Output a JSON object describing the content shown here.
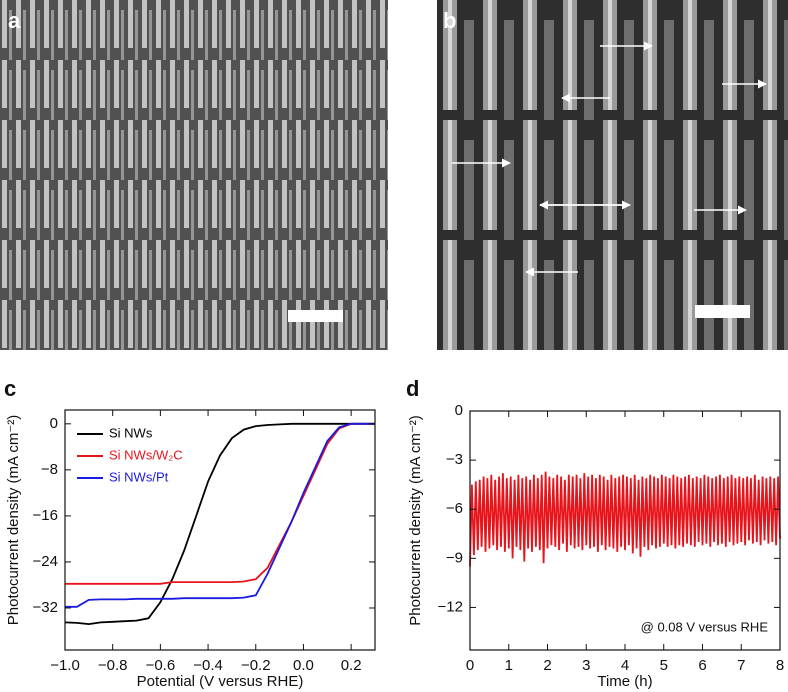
{
  "image_panels": [
    {
      "label": "a"
    },
    {
      "label": "b"
    }
  ],
  "chart_data": [
    {
      "type": "line",
      "label": "c",
      "xlabel": "Potential (V versus RHE)",
      "ylabel": "Photocurrent density (mA cm⁻²)",
      "x": [
        -1,
        -0.95,
        -0.9,
        -0.85,
        -0.8,
        -0.75,
        -0.7,
        -0.65,
        -0.6,
        -0.55,
        -0.5,
        -0.45,
        -0.4,
        -0.35,
        -0.3,
        -0.25,
        -0.2,
        -0.15,
        -0.1,
        -0.05,
        0,
        0.05,
        0.1,
        0.15,
        0.2,
        0.25,
        0.3
      ],
      "series": [
        {
          "name": "Si NWs",
          "color": "#000000",
          "values": [
            -34.5,
            -34.6,
            -34.8,
            -34.5,
            -34.4,
            -34.3,
            -34.2,
            -33.8,
            -31,
            -27,
            -22,
            -16,
            -10,
            -5.5,
            -2.5,
            -1,
            -0.4,
            -0.2,
            -0.1,
            0,
            0,
            0,
            0,
            0,
            0,
            0,
            0
          ]
        },
        {
          "name": "Si NWs/W₂C",
          "color": "#e8141b",
          "values": [
            -27.8,
            -27.8,
            -27.8,
            -27.8,
            -27.8,
            -27.8,
            -27.8,
            -27.8,
            -27.8,
            -27.5,
            -27.5,
            -27.5,
            -27.5,
            -27.5,
            -27.5,
            -27.4,
            -27,
            -25,
            -21,
            -17,
            -12.5,
            -8,
            -3.5,
            -0.8,
            0,
            0,
            0
          ]
        },
        {
          "name": "Si NWs/Pt",
          "color": "#1a1ae0",
          "values": [
            -31.8,
            -31.8,
            -30.6,
            -30.5,
            -30.5,
            -30.5,
            -30.4,
            -30.4,
            -30.4,
            -30.4,
            -30.3,
            -30.3,
            -30.3,
            -30.3,
            -30.3,
            -30.2,
            -29.8,
            -26,
            -21.5,
            -17,
            -12,
            -7.5,
            -3,
            -0.6,
            0,
            0,
            0
          ]
        }
      ],
      "xlim": [
        -1,
        0.3
      ],
      "xticks": [
        {
          "value": -1,
          "label": "−1.0"
        },
        {
          "value": -0.8,
          "label": "−0.8"
        },
        {
          "value": -0.6,
          "label": "−0.6"
        },
        {
          "value": -0.4,
          "label": "−0.4"
        },
        {
          "value": -0.2,
          "label": "−0.2"
        },
        {
          "value": 0,
          "label": "0.0"
        },
        {
          "value": 0.2,
          "label": "0.2"
        }
      ],
      "ylim": [
        -39.3,
        2.4
      ],
      "yticks": [
        0,
        {
          "value": -8,
          "label": "−8"
        },
        {
          "value": -16,
          "label": "−16"
        },
        {
          "value": -24,
          "label": "−24"
        },
        {
          "value": -32,
          "label": "−32"
        }
      ],
      "legend": "upper left"
    },
    {
      "type": "line",
      "label": "d",
      "xlabel": "Time (h)",
      "ylabel": "Photocurrent density (mA cm⁻²)",
      "annotation": "@ 0.08 V versus RHE",
      "x": [
        0,
        0.05,
        0.1,
        0.15,
        0.2,
        0.25,
        0.3,
        0.35,
        0.4,
        0.45,
        0.5,
        0.55,
        0.6,
        0.65,
        0.7,
        0.75,
        0.8,
        0.85,
        0.9,
        0.95,
        1,
        1.05,
        1.1,
        1.15,
        1.2,
        1.25,
        1.3,
        1.35,
        1.4,
        1.45,
        1.5,
        1.55,
        1.6,
        1.65,
        1.7,
        1.75,
        1.8,
        1.85,
        1.9,
        1.95,
        2,
        2.05,
        2.1,
        2.15,
        2.2,
        2.25,
        2.3,
        2.35,
        2.4,
        2.45,
        2.5,
        2.55,
        2.6,
        2.65,
        2.7,
        2.75,
        2.8,
        2.85,
        2.9,
        2.95,
        3,
        3.05,
        3.1,
        3.15,
        3.2,
        3.25,
        3.3,
        3.35,
        3.4,
        3.45,
        3.5,
        3.55,
        3.6,
        3.65,
        3.7,
        3.75,
        3.8,
        3.85,
        3.9,
        3.95,
        4,
        4.05,
        4.1,
        4.15,
        4.2,
        4.25,
        4.3,
        4.35,
        4.4,
        4.45,
        4.5,
        4.55,
        4.6,
        4.65,
        4.7,
        4.75,
        4.8,
        4.85,
        4.9,
        4.95,
        5,
        5.05,
        5.1,
        5.15,
        5.2,
        5.25,
        5.3,
        5.35,
        5.4,
        5.45,
        5.5,
        5.55,
        5.6,
        5.65,
        5.7,
        5.75,
        5.8,
        5.85,
        5.9,
        5.95,
        6,
        6.05,
        6.1,
        6.15,
        6.2,
        6.25,
        6.3,
        6.35,
        6.4,
        6.45,
        6.5,
        6.55,
        6.6,
        6.65,
        6.7,
        6.75,
        6.8,
        6.85,
        6.9,
        6.95,
        7,
        7.05,
        7.1,
        7.15,
        7.2,
        7.25,
        7.3,
        7.35,
        7.4,
        7.45,
        7.5,
        7.55,
        7.6,
        7.65,
        7.7,
        7.75,
        7.8,
        7.85,
        7.9,
        7.95,
        8
      ],
      "series": [
        {
          "name": "Si NWs/W₂C",
          "color": "#e8141b",
          "values": [
            -9.5,
            -4.5,
            -8.8,
            -4.3,
            -8.5,
            -4.2,
            -8.3,
            -4.0,
            -8.6,
            -4.1,
            -8.4,
            -3.9,
            -8.2,
            -4.2,
            -8.5,
            -4.0,
            -8.3,
            -3.8,
            -8.6,
            -4.1,
            -8.4,
            -4.0,
            -9.0,
            -4.2,
            -8.3,
            -3.9,
            -8.5,
            -4.1,
            -9.2,
            -4.0,
            -8.4,
            -4.2,
            -8.6,
            -3.9,
            -8.3,
            -4.1,
            -8.5,
            -3.9,
            -9.3,
            -3.7,
            -8.4,
            -4.0,
            -8.2,
            -4.1,
            -8.3,
            -3.9,
            -8.5,
            -4.0,
            -8.1,
            -4.2,
            -8.6,
            -3.9,
            -8.2,
            -4.0,
            -8.4,
            -3.9,
            -8.3,
            -4.1,
            -8.5,
            -3.8,
            -8.2,
            -4.0,
            -8.4,
            -3.9,
            -8.3,
            -4.1,
            -8.6,
            -3.9,
            -8.2,
            -4.0,
            -8.5,
            -4.2,
            -8.3,
            -3.9,
            -8.4,
            -4.1,
            -8.6,
            -4.0,
            -8.3,
            -3.9,
            -8.5,
            -4.0,
            -8.2,
            -4.1,
            -8.7,
            -3.9,
            -8.4,
            -4.2,
            -8.9,
            -4.0,
            -8.3,
            -4.1,
            -8.5,
            -3.9,
            -8.2,
            -4.0,
            -8.4,
            -4.1,
            -8.3,
            -3.9,
            -8.1,
            -4.0,
            -8.3,
            -4.1,
            -8.2,
            -3.9,
            -8.4,
            -4.0,
            -8.2,
            -4.1,
            -8.3,
            -4.0,
            -8.1,
            -3.9,
            -8.2,
            -4.1,
            -8.3,
            -4.0,
            -8.0,
            -4.1,
            -8.2,
            -3.9,
            -8.1,
            -4.0,
            -8.3,
            -4.1,
            -8.0,
            -4.0,
            -8.2,
            -3.9,
            -8.1,
            -4.1,
            -8.3,
            -4.0,
            -8.0,
            -3.9,
            -8.2,
            -4.1,
            -8.1,
            -4.0,
            -8.0,
            -4.1,
            -8.2,
            -4.0,
            -7.9,
            -4.1,
            -8.1,
            -3.9,
            -8.0,
            -4.2,
            -8.2,
            -4.0,
            -7.9,
            -4.1,
            -8.1,
            -4.0,
            -8.0,
            -4.1,
            -8.2,
            -4.0,
            -7.8
          ]
        }
      ],
      "xlim": [
        0,
        8
      ],
      "xticks": [
        0,
        1,
        2,
        3,
        4,
        5,
        6,
        7,
        8
      ],
      "ylim": [
        -14.6,
        0
      ],
      "yticks": [
        0,
        {
          "value": -3,
          "label": "−3"
        },
        {
          "value": -6,
          "label": "−6"
        },
        {
          "value": -9,
          "label": "−9"
        },
        {
          "value": -12,
          "label": "−12"
        }
      ]
    }
  ]
}
